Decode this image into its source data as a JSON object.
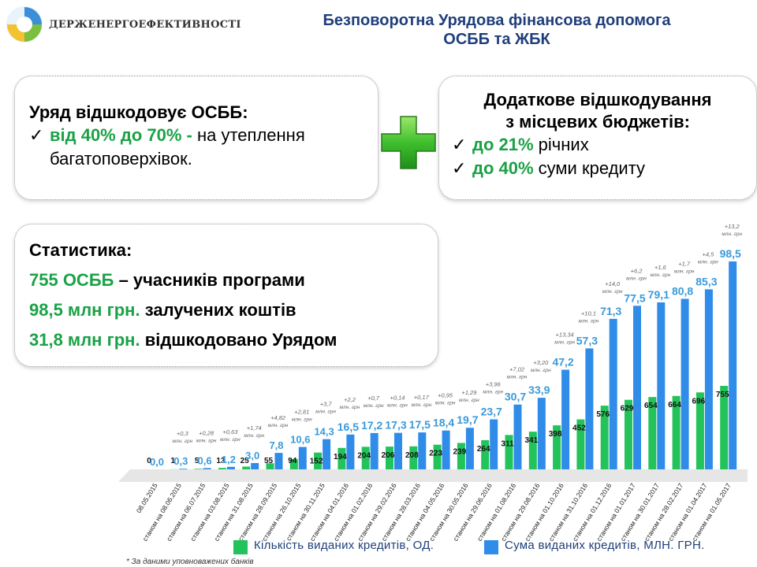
{
  "header": {
    "org_name": "ДЕРЖЕНЕРГОЕФЕКТИВНОСТІ",
    "title_line1": "Безповоротна Урядова фінансова допомога",
    "title_line2": "ОСББ та ЖБК"
  },
  "card_left": {
    "heading": "Уряд відшкодовує ОСББ:",
    "check": "✓",
    "highlight": "від 40% до 70% -",
    "text1": " на утеплення",
    "text2": "багатоповерхівок."
  },
  "card_right": {
    "heading1": "Додаткове відшкодування",
    "heading2": "з місцевих бюджетів:",
    "check": "✓",
    "item1_highlight": "до 21%",
    "item1_text": " річних",
    "item2_highlight": "до 40%",
    "item2_text": " суми кредиту"
  },
  "stats": {
    "heading": "Статистика:",
    "s1_highlight": "755 ОСББ",
    "s1_text": " – учасників програми",
    "s2_highlight": "98,5 млн грн.",
    "s2_text": " залучених коштів",
    "s3_highlight": "31,8 млн грн.",
    "s3_text": " відшкодовано Урядом"
  },
  "colors": {
    "green": "#22c35a",
    "blue": "#2f8ce8",
    "highlight_green": "#1aa246",
    "title_blue": "#1f3f7a"
  },
  "chart_data": {
    "type": "bar",
    "categories": [
      "08.05.2015",
      "станом на 08.06.2015",
      "станом на 06.07.2015",
      "станом на 03.08.2015",
      "станом на 31.08.2015",
      "станом на 28.09.2015",
      "станом на 26.10.2015",
      "станом на 30.11.2015",
      "станом на 04.01.2016",
      "станом на 01.02.2016",
      "станом на 29.02.2016",
      "станом на 28.03.2016",
      "станом на 04.05.2016",
      "станом на 30.05.2016",
      "станом на 29.06.2016",
      "станом на 01.08.2016",
      "станом на 29.08.2016",
      "станом на 01.10.2016",
      "станом на 31.10.2016",
      "станом на 01.12.2016",
      "станом на 01.01.2017",
      "станом на 30.01.2017",
      "станом на 28.02.2017",
      "станом на 01.04.2017",
      "станом на 01.05.2017"
    ],
    "series": [
      {
        "name": "Кількість виданих кредитів, ОД.",
        "values": [
          0,
          1,
          5,
          13,
          25,
          55,
          94,
          152,
          194,
          204,
          206,
          208,
          223,
          239,
          264,
          311,
          341,
          398,
          452,
          576,
          629,
          654,
          664,
          696,
          755
        ],
        "labels": [
          "0",
          "1",
          "5",
          "13",
          "25",
          "55",
          "94",
          "152",
          "194",
          "204",
          "206",
          "208",
          "223",
          "239",
          "264",
          "311",
          "341",
          "398",
          "452",
          "576",
          "629",
          "654",
          "664",
          "696",
          "755"
        ]
      },
      {
        "name": "Сума виданих кредитів, МЛН. ГРН.",
        "values": [
          0.0,
          0.3,
          0.6,
          1.2,
          3.0,
          7.8,
          10.6,
          14.3,
          16.5,
          17.2,
          17.3,
          17.5,
          18.4,
          19.7,
          23.7,
          30.7,
          33.9,
          47.2,
          57.3,
          71.3,
          77.5,
          79.1,
          80.8,
          85.3,
          98.5
        ],
        "labels": [
          "0,0",
          "0,3",
          "0,6",
          "1,2",
          "3,0",
          "7,8",
          "10,6",
          "14,3",
          "16,5",
          "17,2",
          "17,3",
          "17,5",
          "18,4",
          "19,7",
          "23,7",
          "30,7",
          "33,9",
          "47,2",
          "57,3",
          "71,3",
          "77,5",
          "79,1",
          "80,8",
          "85,3",
          "98,5"
        ]
      }
    ],
    "increments": [
      "",
      "+0,3",
      "+0,28",
      "+0,63",
      "+1,74",
      "+4,82",
      "+2,81",
      "+3,7",
      "+2,2",
      "+0,7",
      "+0,14",
      "+0,17",
      "+0,95",
      "+1,29",
      "+3,96",
      "+7,02",
      "+3,20",
      "+13,34",
      "+10,1",
      "+14,0",
      "+6,2",
      "+1,6",
      "+1,7",
      "+4,5",
      "+13,2"
    ],
    "increment_unit_line1": "млн.",
    "increment_unit_line2": "грн",
    "legend_position": "bottom",
    "footnote": "* За даними уповноважених банків"
  }
}
